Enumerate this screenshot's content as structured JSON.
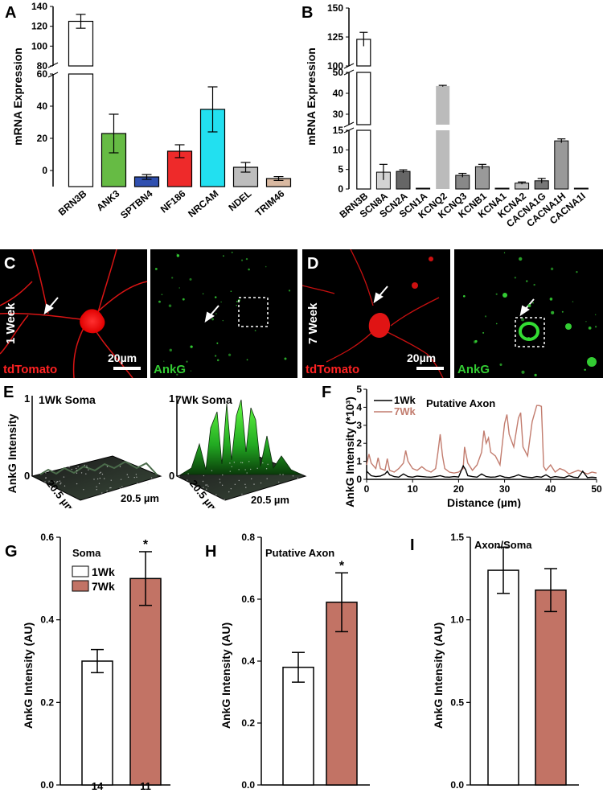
{
  "figure": {
    "panelA": {
      "letter": "A",
      "ylabel": "mRNA Expression",
      "yticks_low": [
        "0",
        "20",
        "40",
        "60"
      ],
      "yticks_high": [
        "80",
        "100",
        "120",
        "140"
      ]
    },
    "panelB": {
      "letter": "B",
      "ylabel": "mRNA Expression",
      "yticks_low": [
        "0",
        "5",
        "10",
        "15"
      ],
      "yticks_mid": [
        "30",
        "40",
        "50"
      ],
      "yticks_high": [
        "100",
        "125",
        "150"
      ]
    },
    "panelC": {
      "letter": "C",
      "side_label": "1 Week",
      "red_label": "tdTomato",
      "green_label": "AnkG",
      "scale_label": "20µm"
    },
    "panelD": {
      "letter": "D",
      "side_label": "7 Week",
      "red_label": "tdTomato",
      "green_label": "AnkG",
      "scale_label": "20µm"
    },
    "panelE": {
      "letter": "E",
      "zlabel": "AnkG Intensity",
      "left_title": "1Wk Soma",
      "right_title": "7Wk Soma",
      "z_max": "1",
      "z_min": "0",
      "dim_label": "20.5 µm"
    },
    "panelF": {
      "letter": "F",
      "ylabel": "AnkG Intensity (*10³)",
      "xlabel": "Distance (µm)",
      "title": "Putative Axon",
      "legend": [
        "1Wk",
        "7Wk"
      ],
      "colors": {
        "wk1": "#000000",
        "wk7": "#c27c6e"
      }
    },
    "panelG": {
      "letter": "G",
      "title": "Soma",
      "ylabel": "AnkG Intensity (AU)",
      "legend": [
        "1Wk",
        "7Wk"
      ],
      "n_labels": [
        "14",
        "11"
      ],
      "sig": "*"
    },
    "panelH": {
      "letter": "H",
      "title": "Putative Axon",
      "ylabel": "AnkG Intensity (AU)",
      "sig": "*"
    },
    "panelI": {
      "letter": "I",
      "title": "Axon/Soma",
      "ylabel": "AnkG Intensity (AU)"
    }
  },
  "chart_data": [
    {
      "type": "bar",
      "panel": "A",
      "ylabel": "mRNA Expression",
      "axis_break": [
        60,
        80
      ],
      "categories": [
        "BRN3B",
        "ANK3",
        "SPTBN4",
        "NF186",
        "NRCAM",
        "NDEL",
        "TRIM46"
      ],
      "values": [
        125,
        23,
        -4,
        12,
        38,
        2,
        -5
      ],
      "errors": [
        7,
        12,
        1.5,
        4,
        14,
        3,
        1.2
      ],
      "colors": [
        "#ffffff",
        "#66bb44",
        "#3050b0",
        "#ee2a2a",
        "#22e0f0",
        "#bdbdbd",
        "#d9b9a1"
      ]
    },
    {
      "type": "bar",
      "panel": "B",
      "ylabel": "mRNA Expression",
      "axis_breaks": [
        [
          15,
          25
        ],
        [
          50,
          100
        ]
      ],
      "categories": [
        "BRN3B",
        "SCN8A",
        "SCN2A",
        "SCN1A",
        "KCNQ2",
        "KCNQ3",
        "KCNB1",
        "KCNA1",
        "KCNA2",
        "CACNA1G",
        "CACNA1H",
        "CACNA1I"
      ],
      "values": [
        123,
        4.3,
        4.5,
        0.1,
        43.5,
        3.5,
        5.7,
        0.05,
        1.5,
        2.1,
        12.3,
        0.05
      ],
      "errors": [
        6,
        2,
        0.4,
        0,
        0.3,
        0.5,
        0.6,
        0,
        0.3,
        0.6,
        0.5,
        0
      ],
      "colors": [
        "#ffffff",
        "#d3d3d3",
        "#666666",
        "#cccccc",
        "#bbbbbb",
        "#888888",
        "#999999",
        "#cccccc",
        "#bbbbbb",
        "#777777",
        "#999999",
        "#cccccc"
      ]
    },
    {
      "type": "line",
      "panel": "F",
      "xlabel": "Distance (µm)",
      "ylabel": "AnkG Intensity (*10³)",
      "xlim": [
        0,
        50
      ],
      "ylim": [
        0,
        5
      ],
      "xticks": [
        0,
        10,
        20,
        30,
        40,
        50
      ],
      "yticks": [
        0,
        1,
        2,
        3,
        4,
        5
      ],
      "series": [
        {
          "name": "1Wk",
          "x": [
            0,
            1,
            2,
            3,
            4,
            4.5,
            5,
            6,
            7,
            8,
            9,
            10,
            11,
            12,
            13,
            14,
            15,
            16,
            17,
            18,
            19,
            20,
            21,
            21.5,
            22,
            23,
            24,
            25,
            26,
            27,
            28,
            29,
            30,
            31,
            32,
            33,
            34,
            35,
            36,
            37,
            38,
            39,
            40,
            41,
            42,
            43,
            44,
            45,
            46,
            47,
            48,
            49,
            50
          ],
          "y": [
            0.45,
            0.2,
            0.15,
            0.18,
            0.3,
            0.45,
            0.25,
            0.15,
            0.12,
            0.3,
            0.15,
            0.12,
            0.18,
            0.15,
            0.13,
            0.12,
            0.15,
            0.2,
            0.13,
            0.12,
            0.15,
            0.13,
            0.75,
            0.55,
            0.2,
            0.15,
            0.12,
            0.3,
            0.15,
            0.12,
            0.13,
            0.2,
            0.12,
            0.1,
            0.15,
            0.25,
            0.15,
            0.12,
            0.1,
            0.15,
            0.12,
            0.25,
            0.1,
            0.15,
            0.12,
            0.1,
            0.2,
            0.12,
            0.1,
            0.45,
            0.1,
            0.12,
            0.1
          ]
        },
        {
          "name": "7Wk",
          "x": [
            0,
            0.5,
            1,
            2,
            2.5,
            3,
            4,
            4.5,
            5,
            6,
            7,
            8,
            8.5,
            9,
            10,
            11,
            12,
            13,
            14,
            15,
            15.5,
            16,
            16.5,
            17,
            18,
            19,
            20,
            21,
            21.3,
            22,
            23,
            24,
            25,
            25.5,
            26,
            26.5,
            27,
            28,
            29,
            30,
            30.5,
            31,
            32,
            33,
            33.5,
            34,
            35,
            36,
            37,
            37.5,
            38,
            38.5,
            39,
            40,
            41,
            42,
            43,
            44,
            45,
            46,
            47,
            48,
            49,
            50
          ],
          "y": [
            0.8,
            1.4,
            0.9,
            0.6,
            1.2,
            0.6,
            0.5,
            1.15,
            0.5,
            0.4,
            0.6,
            0.9,
            1.6,
            1.0,
            0.6,
            0.5,
            0.7,
            0.5,
            0.4,
            0.6,
            1.5,
            2.5,
            1.3,
            0.6,
            0.4,
            0.35,
            0.4,
            0.6,
            1.8,
            0.9,
            0.5,
            0.8,
            1.5,
            2.7,
            2.0,
            2.3,
            1.5,
            1.3,
            0.8,
            3.1,
            3.6,
            2.5,
            1.8,
            3.4,
            3.7,
            1.8,
            1.3,
            3.2,
            4.1,
            4.1,
            4.05,
            0.7,
            0.5,
            0.8,
            0.4,
            0.6,
            0.5,
            0.3,
            0.4,
            0.5,
            0.4,
            0.3,
            0.4,
            0.35
          ]
        }
      ]
    },
    {
      "type": "bar",
      "panel": "G",
      "title": "Soma",
      "ylabel": "AnkG Intensity (AU)",
      "ylim": [
        0,
        0.6
      ],
      "yticks": [
        0.0,
        0.2,
        0.4,
        0.6
      ],
      "categories": [
        "1Wk",
        "7Wk"
      ],
      "values": [
        0.3,
        0.5
      ],
      "errors": [
        0.028,
        0.065
      ],
      "n": [
        "14",
        "11"
      ],
      "significance": [
        "",
        "*"
      ],
      "colors": [
        "#ffffff",
        "#c27365"
      ]
    },
    {
      "type": "bar",
      "panel": "H",
      "title": "Putative Axon",
      "ylabel": "AnkG Intensity (AU)",
      "ylim": [
        0,
        0.8
      ],
      "yticks": [
        0.0,
        0.2,
        0.4,
        0.6,
        0.8
      ],
      "categories": [
        "1Wk",
        "7Wk"
      ],
      "values": [
        0.38,
        0.59
      ],
      "errors": [
        0.048,
        0.095
      ],
      "significance": [
        "",
        "*"
      ],
      "colors": [
        "#ffffff",
        "#c27365"
      ]
    },
    {
      "type": "bar",
      "panel": "I",
      "title": "Axon/Soma",
      "ylabel": "AnkG Intensity (AU)",
      "ylim": [
        0,
        1.5
      ],
      "yticks": [
        0.0,
        0.5,
        1.0,
        1.5
      ],
      "categories": [
        "1Wk",
        "7Wk"
      ],
      "values": [
        1.3,
        1.18
      ],
      "errors": [
        0.14,
        0.13
      ],
      "colors": [
        "#ffffff",
        "#c27365"
      ]
    }
  ]
}
